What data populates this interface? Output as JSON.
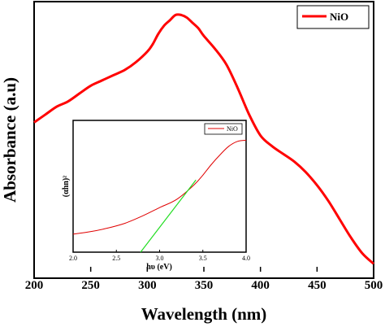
{
  "chart_data": [
    {
      "type": "line",
      "title": "",
      "xlabel": "Wavelength (nm)",
      "ylabel": "Absorbance (a.u)",
      "xlim": [
        200,
        500
      ],
      "ylim": [
        0,
        1
      ],
      "xticks": [
        "200",
        "250",
        "300",
        "350",
        "400",
        "450",
        "500"
      ],
      "yticks": [],
      "grid": false,
      "legend": {
        "placement": "top-right",
        "entries": [
          "NiO"
        ]
      },
      "series": [
        {
          "name": "NiO",
          "color": "#ff0000",
          "x": [
            200,
            210,
            220,
            230,
            240,
            250,
            260,
            270,
            280,
            290,
            300,
            305,
            310,
            315,
            320,
            325,
            330,
            335,
            340,
            345,
            350,
            360,
            370,
            380,
            390,
            400,
            410,
            420,
            430,
            440,
            450,
            460,
            470,
            480,
            490,
            500
          ],
          "y": [
            0.57,
            0.6,
            0.63,
            0.65,
            0.68,
            0.71,
            0.73,
            0.75,
            0.77,
            0.8,
            0.84,
            0.87,
            0.91,
            0.94,
            0.96,
            0.98,
            0.98,
            0.97,
            0.95,
            0.93,
            0.9,
            0.85,
            0.79,
            0.7,
            0.6,
            0.52,
            0.48,
            0.45,
            0.42,
            0.38,
            0.33,
            0.27,
            0.2,
            0.13,
            0.07,
            0.03
          ]
        }
      ]
    },
    {
      "type": "line",
      "title": "",
      "xlabel": "hυ (eV)",
      "ylabel": "(αhn)²",
      "xlim": [
        2.0,
        4.0
      ],
      "ylim": [
        0,
        1
      ],
      "xticks": [
        "2.0",
        "2.5",
        "3.0",
        "3.5",
        "4.0"
      ],
      "yticks": [],
      "grid": false,
      "legend": {
        "placement": "top-right",
        "entries": [
          "NiO"
        ]
      },
      "series": [
        {
          "name": "NiO",
          "color": "#e00000",
          "x": [
            2.0,
            2.2,
            2.4,
            2.6,
            2.8,
            3.0,
            3.2,
            3.4,
            3.5,
            3.6,
            3.7,
            3.8,
            3.9,
            4.0
          ],
          "y": [
            0.15,
            0.17,
            0.2,
            0.24,
            0.3,
            0.37,
            0.44,
            0.56,
            0.64,
            0.73,
            0.81,
            0.88,
            0.92,
            0.93
          ]
        },
        {
          "name": "",
          "color": "#22dd22",
          "x": [
            2.78,
            3.42
          ],
          "y": [
            0.0,
            0.6
          ]
        }
      ]
    }
  ]
}
